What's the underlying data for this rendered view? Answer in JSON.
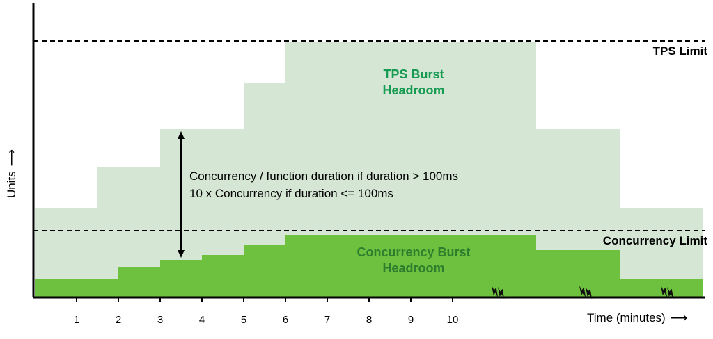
{
  "chart_data": {
    "type": "area",
    "title": "",
    "xlabel": "Time (minutes)",
    "ylabel": "Units",
    "x_ticks": [
      "1",
      "2",
      "3",
      "4",
      "5",
      "6",
      "7",
      "8",
      "9",
      "10"
    ],
    "x_range_minutes": [
      0,
      16
    ],
    "y_range_units": [
      0,
      400
    ],
    "grid": false,
    "legend": "none",
    "colors": {
      "tps_area": "#d5e7d4",
      "concurrency_area": "#6ec13e",
      "tps_label_text": "#179a52",
      "concurrency_label_text": "#2c7d2e",
      "axis": "#000000"
    },
    "series": [
      {
        "name": "TPS Burst Headroom",
        "style": "step-area",
        "color_key": "tps_area",
        "steps": [
          {
            "from": 0,
            "to": 1.5,
            "value": 128
          },
          {
            "from": 1.5,
            "to": 3,
            "value": 188
          },
          {
            "from": 3,
            "to": 5,
            "value": 242
          },
          {
            "from": 5,
            "to": 6,
            "value": 308
          },
          {
            "from": 6,
            "to": 12,
            "value": 367
          },
          {
            "from": 12,
            "to": 14,
            "value": 242
          },
          {
            "from": 14,
            "to": 16,
            "value": 128
          }
        ]
      },
      {
        "name": "Concurrency Burst Headroom",
        "style": "step-area",
        "color_key": "concurrency_area",
        "steps": [
          {
            "from": 0,
            "to": 2,
            "value": 26
          },
          {
            "from": 2,
            "to": 3,
            "value": 43
          },
          {
            "from": 3,
            "to": 4,
            "value": 54
          },
          {
            "from": 4,
            "to": 5,
            "value": 61
          },
          {
            "from": 5,
            "to": 6,
            "value": 75
          },
          {
            "from": 6,
            "to": 12,
            "value": 90
          },
          {
            "from": 12,
            "to": 14,
            "value": 68
          },
          {
            "from": 14,
            "to": 16,
            "value": 26
          }
        ]
      }
    ],
    "reference_lines": [
      {
        "label": "TPS Limit",
        "value": 369,
        "style": "dashed"
      },
      {
        "label": "Concurrency Limit",
        "value": 96,
        "style": "dashed"
      }
    ],
    "annotations": {
      "tps_area_label": {
        "line1": "TPS Burst",
        "line2": "Headroom"
      },
      "concurrency_area_label": {
        "line1": "Concurrency Burst",
        "line2": "Headroom"
      },
      "headroom_formula": {
        "line1": "Concurrency / function duration if duration > 100ms",
        "line2": "10 x Concurrency if duration <= 100ms",
        "arrow_x_minute": 3.5
      },
      "throttle_marker_minutes": [
        11.1,
        13.2,
        15.15
      ]
    }
  }
}
